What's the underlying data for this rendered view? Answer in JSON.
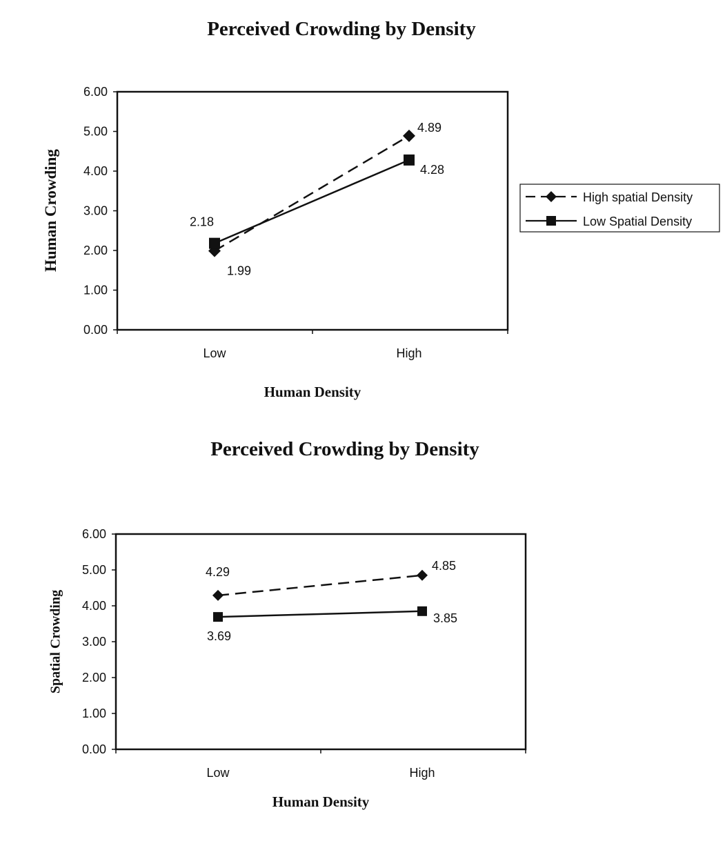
{
  "chart_data": [
    {
      "type": "line",
      "title": "Perceived Crowding by Density",
      "xlabel": "Human Density",
      "ylabel": "Human Crowding",
      "categories": [
        "Low",
        "High"
      ],
      "ylim": [
        0,
        6
      ],
      "yticks": [
        "0.00",
        "1.00",
        "2.00",
        "3.00",
        "4.00",
        "5.00",
        "6.00"
      ],
      "legend_position": "right",
      "series": [
        {
          "name": "High spatial Density",
          "marker": "diamond",
          "line": "dashed",
          "values": [
            1.99,
            4.89
          ],
          "labels": [
            "1.99",
            "4.89"
          ]
        },
        {
          "name": "Low Spatial Density",
          "marker": "square",
          "line": "solid",
          "values": [
            2.18,
            4.28
          ],
          "labels": [
            "2.18",
            "4.28"
          ]
        }
      ]
    },
    {
      "type": "line",
      "title": "Perceived Crowding by Density",
      "xlabel": "Human Density",
      "ylabel": "Spatial Crowding",
      "categories": [
        "Low",
        "High"
      ],
      "ylim": [
        0,
        6
      ],
      "yticks": [
        "0.00",
        "1.00",
        "2.00",
        "3.00",
        "4.00",
        "5.00",
        "6.00"
      ],
      "legend_position": "none",
      "series": [
        {
          "marker": "diamond",
          "line": "dashed",
          "values": [
            4.29,
            4.85
          ],
          "labels": [
            "4.29",
            "4.85"
          ]
        },
        {
          "marker": "square",
          "line": "solid",
          "values": [
            3.69,
            3.85
          ],
          "labels": [
            "3.69",
            "3.85"
          ]
        }
      ]
    }
  ],
  "colors": {
    "ink": "#111111",
    "background": "#ffffff"
  }
}
